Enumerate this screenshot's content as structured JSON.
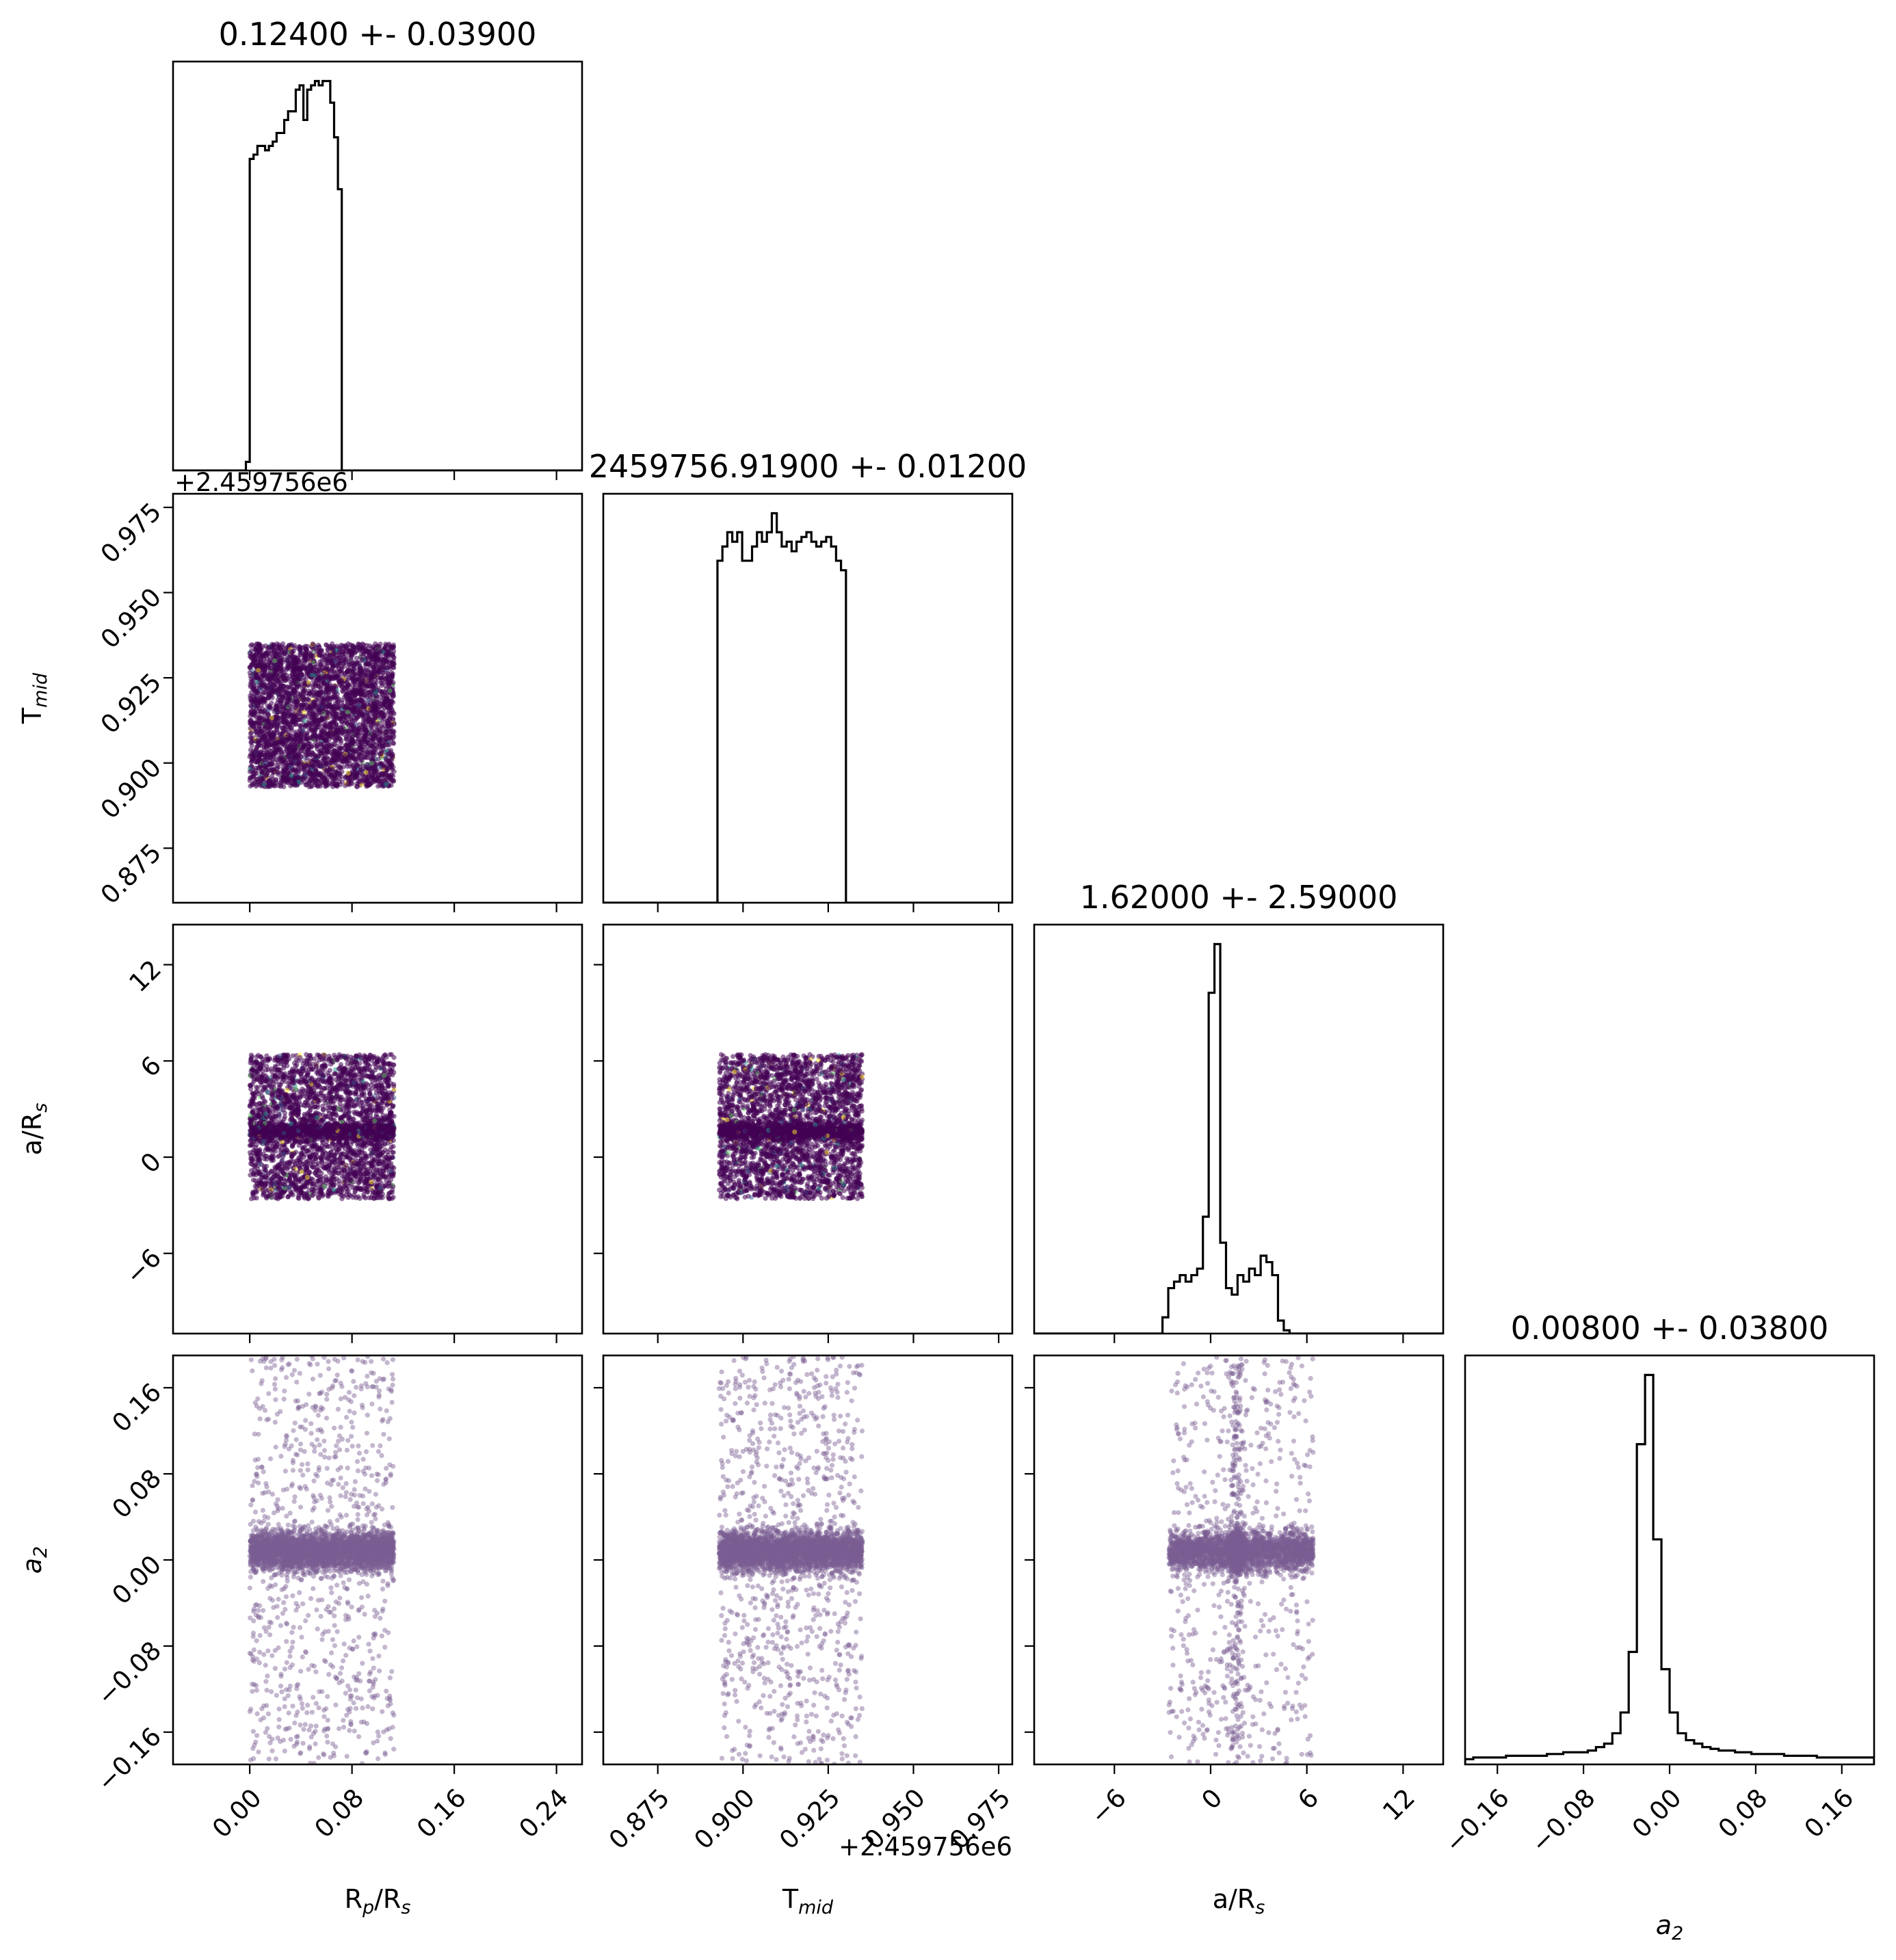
{
  "colors": {
    "points_dense": "#440154",
    "points_sparse": "#7b5e93",
    "points_sprinkle": [
      "#fde725",
      "#21918c",
      "#5ec962",
      "#3b528b"
    ],
    "hist_line": "#000000"
  },
  "chart_data": {
    "type": "corner",
    "parameters": [
      {
        "key": "rp",
        "label_main": "R",
        "label_sub": "p",
        "label_tail": "/R",
        "label_tail_sub": "s",
        "range": [
          -0.06,
          0.26
        ],
        "ticks": [
          0.0,
          0.08,
          0.16,
          0.24
        ],
        "tick_labels": [
          "0.00",
          "0.08",
          "0.16",
          "0.24"
        ],
        "title": "0.12400 +- 0.03900",
        "sample_range": [
          0.0,
          0.113
        ]
      },
      {
        "key": "tmid",
        "label_main": "T",
        "label_sub": "mid",
        "label_tail": "",
        "label_tail_sub": "",
        "range": [
          0.859,
          0.979
        ],
        "ticks": [
          0.875,
          0.9,
          0.925,
          0.95,
          0.975
        ],
        "tick_labels": [
          "0.875",
          "0.900",
          "0.925",
          "0.950",
          "0.975"
        ],
        "offset_text": "+2.459756e6",
        "title": "2459756.91900 +- 0.01200",
        "sample_range": [
          0.893,
          0.935
        ]
      },
      {
        "key": "aRs",
        "label_main": "a/R",
        "label_sub": "s",
        "label_tail": "",
        "label_tail_sub": "",
        "range": [
          -11,
          14.5
        ],
        "ticks": [
          -6,
          0,
          6,
          12
        ],
        "tick_labels": [
          "−6",
          "0",
          "6",
          "12"
        ],
        "title": "1.62000 +- 2.59000",
        "sample_range": [
          -2.6,
          6.4
        ]
      },
      {
        "key": "a2",
        "label_main": "a",
        "label_sub": "2",
        "label_tail": "",
        "label_tail_sub": "",
        "italic": true,
        "range": [
          -0.19,
          0.19
        ],
        "ticks": [
          -0.16,
          -0.08,
          0.0,
          0.08,
          0.16
        ],
        "tick_labels": [
          "−0.16",
          "−0.08",
          "0.00",
          "0.08",
          "0.16"
        ],
        "title": "0.00800 +- 0.03800",
        "sample_range": [
          -0.19,
          0.19
        ]
      }
    ],
    "histograms": [
      {
        "param": "rp",
        "x_edges_start": -0.003,
        "bin_width": 0.003,
        "values": [
          2,
          72,
          73,
          75,
          75,
          74,
          75,
          76,
          78,
          78,
          81,
          83,
          83,
          88,
          89,
          81,
          88,
          89,
          90,
          89,
          90,
          90,
          85,
          77,
          65
        ]
      },
      {
        "param": "tmid",
        "x_edges_start": 0.8925,
        "bin_width": 0.00145,
        "values": [
          72,
          75,
          78,
          76,
          78,
          72,
          72,
          75,
          78,
          76,
          78,
          82,
          78,
          75,
          76,
          74,
          76,
          77,
          78,
          76,
          75,
          76,
          77,
          75,
          72,
          70,
          0
        ]
      },
      {
        "param": "aRs",
        "x_edges_start": -3.0,
        "bin_width": 0.36,
        "values": [
          5,
          14,
          16,
          18,
          16,
          18,
          20,
          36,
          105,
          120,
          28,
          14,
          12,
          18,
          16,
          20,
          18,
          24,
          22,
          18,
          4,
          1,
          0
        ]
      },
      {
        "param": "a2",
        "x_edges_start": -0.19,
        "bin_width": 0.0076,
        "values": [
          3,
          4,
          4,
          4,
          4,
          5,
          5,
          5,
          5,
          5,
          6,
          6,
          7,
          7,
          7,
          8,
          10,
          12,
          18,
          30,
          65,
          185,
          225,
          130,
          55,
          30,
          18,
          14,
          12,
          10,
          9,
          8,
          8,
          7,
          7,
          6,
          6,
          6,
          6,
          5,
          5,
          5,
          5,
          4,
          4,
          4,
          4,
          4,
          4,
          4
        ]
      }
    ],
    "scatter_samples_per_panel": 4000
  }
}
